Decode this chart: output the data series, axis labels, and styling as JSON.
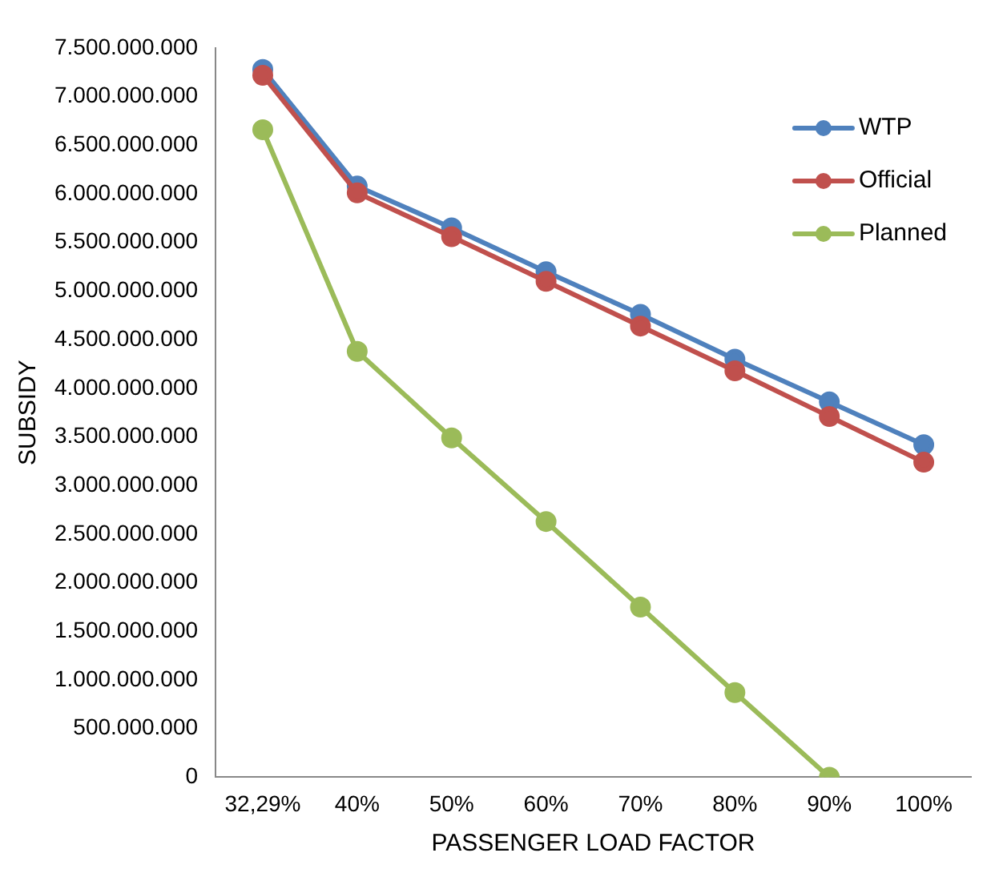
{
  "chart_data": {
    "type": "line",
    "xlabel": "PASSENGER LOAD FACTOR",
    "ylabel": "SUBSIDY",
    "categories": [
      "32,29%",
      "40%",
      "50%",
      "60%",
      "70%",
      "80%",
      "90%",
      "100%"
    ],
    "series": [
      {
        "name": "WTP",
        "color": "#4f81bd",
        "values": [
          7280000000,
          6080000000,
          5650000000,
          5200000000,
          4760000000,
          4300000000,
          3860000000,
          3420000000
        ]
      },
      {
        "name": "Official",
        "color": "#c0504d",
        "values": [
          7220000000,
          6010000000,
          5560000000,
          5100000000,
          4640000000,
          4180000000,
          3710000000,
          3240000000
        ]
      },
      {
        "name": "Planned",
        "color": "#9bbb59",
        "values": [
          6660000000,
          4380000000,
          3490000000,
          2630000000,
          1750000000,
          870000000,
          0,
          null
        ]
      }
    ],
    "ylim": [
      0,
      7500000000
    ],
    "yticks": [
      {
        "value": 0,
        "label": "0"
      },
      {
        "value": 500000000,
        "label": "500.000.000"
      },
      {
        "value": 1000000000,
        "label": "1.000.000.000"
      },
      {
        "value": 1500000000,
        "label": "1.500.000.000"
      },
      {
        "value": 2000000000,
        "label": "2.000.000.000"
      },
      {
        "value": 2500000000,
        "label": "2.500.000.000"
      },
      {
        "value": 3000000000,
        "label": "3.000.000.000"
      },
      {
        "value": 3500000000,
        "label": "3.500.000.000"
      },
      {
        "value": 4000000000,
        "label": "4.000.000.000"
      },
      {
        "value": 4500000000,
        "label": "4.500.000.000"
      },
      {
        "value": 5000000000,
        "label": "5.000.000.000"
      },
      {
        "value": 5500000000,
        "label": "5.500.000.000"
      },
      {
        "value": 6000000000,
        "label": "6.000.000.000"
      },
      {
        "value": 6500000000,
        "label": "6.500.000.000"
      },
      {
        "value": 7000000000,
        "label": "7.000.000.000"
      },
      {
        "value": 7500000000,
        "label": "7.500.000.000"
      }
    ],
    "grid": false,
    "legend": "top right",
    "marker": "circle",
    "line_style": "solid"
  }
}
